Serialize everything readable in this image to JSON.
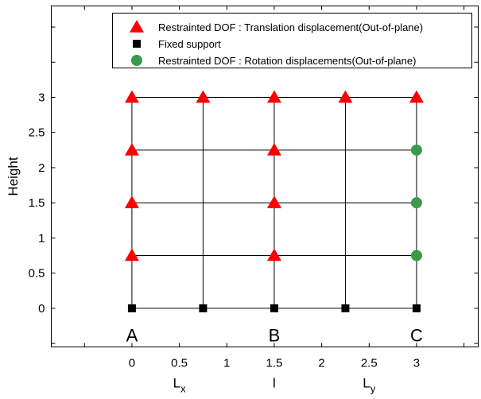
{
  "chart_data": {
    "type": "scatter",
    "title": "",
    "xlabel": "",
    "ylabel": "Height",
    "xlim": [
      -0.85,
      3.65
    ],
    "ylim": [
      -0.55,
      4.3
    ],
    "x_ticks": [
      0,
      0.5,
      1,
      1.5,
      2,
      2.5,
      3
    ],
    "x_tick_labels": [
      "0",
      "0.5",
      "1",
      "1.5",
      "2",
      "2.5",
      "3"
    ],
    "y_ticks": [
      0,
      0.5,
      1,
      1.5,
      2,
      2.5,
      3
    ],
    "y_tick_labels": [
      "0",
      "0.5",
      "1",
      "1.5",
      "2",
      "2.5",
      "3"
    ],
    "grid": false,
    "legend_position": "top-right",
    "grid_lines": {
      "horizontal": [
        {
          "y": 0,
          "x": [
            0,
            3
          ]
        },
        {
          "y": 0.75,
          "x": [
            0,
            3
          ]
        },
        {
          "y": 1.5,
          "x": [
            0,
            3
          ]
        },
        {
          "y": 2.25,
          "x": [
            0,
            3
          ]
        },
        {
          "y": 3,
          "x": [
            0,
            3
          ]
        }
      ],
      "vertical": [
        {
          "x": 0,
          "y": [
            0,
            3
          ]
        },
        {
          "x": 0.75,
          "y": [
            0,
            3
          ]
        },
        {
          "x": 1.5,
          "y": [
            0,
            3
          ]
        },
        {
          "x": 2.25,
          "y": [
            0,
            3
          ]
        },
        {
          "x": 3,
          "y": [
            0,
            3
          ]
        }
      ]
    },
    "series": [
      {
        "name": "Restrainted DOF : Translation displacement(Out-of-plane)",
        "marker": "triangle",
        "color": "#ff0000",
        "points": [
          [
            0,
            3
          ],
          [
            0.75,
            3
          ],
          [
            1.5,
            3
          ],
          [
            2.25,
            3
          ],
          [
            3,
            3
          ],
          [
            0,
            2.25
          ],
          [
            1.5,
            2.25
          ],
          [
            0,
            1.5
          ],
          [
            1.5,
            1.5
          ],
          [
            0,
            0.75
          ],
          [
            1.5,
            0.75
          ]
        ]
      },
      {
        "name": "Fixed support",
        "marker": "square",
        "color": "#000000",
        "points": [
          [
            0,
            0
          ],
          [
            0.75,
            0
          ],
          [
            1.5,
            0
          ],
          [
            2.25,
            0
          ],
          [
            3,
            0
          ]
        ]
      },
      {
        "name": "Restrainted DOF : Rotation displacements(Out-of-plane)",
        "marker": "circle",
        "color": "#3a9a4a",
        "points": [
          [
            3,
            2.25
          ],
          [
            3,
            1.5
          ],
          [
            3,
            0.75
          ]
        ]
      }
    ],
    "annotations": [
      {
        "text": "A",
        "x": 0,
        "y": -0.38
      },
      {
        "text": "B",
        "x": 1.5,
        "y": -0.38
      },
      {
        "text": "C",
        "x": 3,
        "y": -0.38
      }
    ],
    "bottom_labels": [
      {
        "text": "L",
        "sub": "x",
        "x": 0.5
      },
      {
        "text": "l",
        "sub": "",
        "x": 1.5
      },
      {
        "text": "L",
        "sub": "y",
        "x": 2.5
      }
    ]
  }
}
